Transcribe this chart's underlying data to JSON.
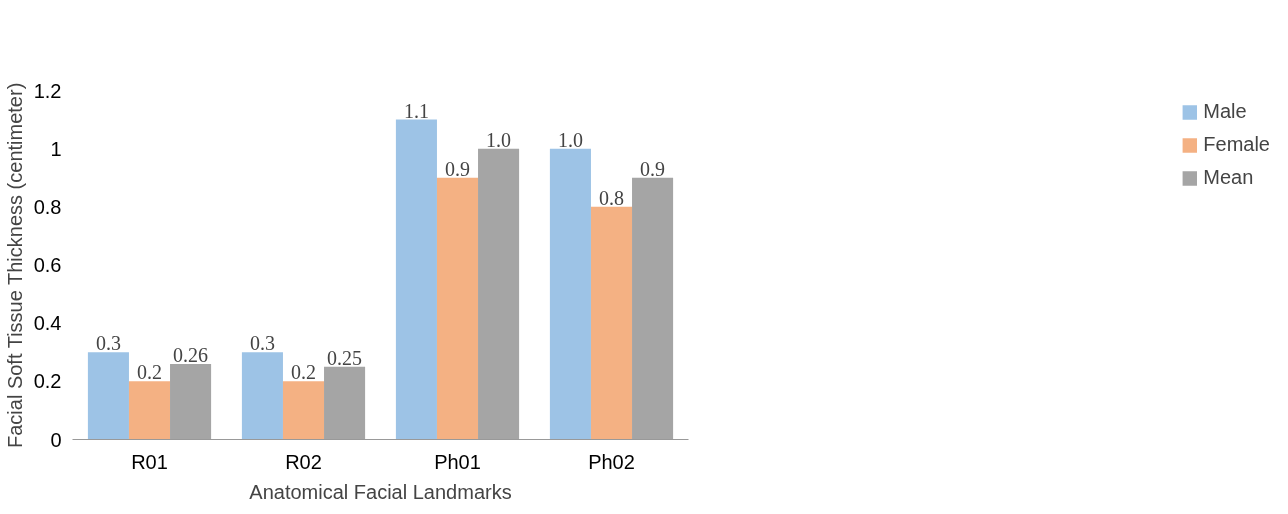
{
  "chart_data": {
    "type": "bar",
    "xlabel": "Anatomical Facial Landmarks",
    "ylabel": "Facial Soft Tissue Thickness (centimeter)",
    "categories": [
      "R01",
      "R02",
      "Ph01",
      "Ph02"
    ],
    "series": [
      {
        "name": "Male",
        "color": "#9dc3e6",
        "values": [
          0.3,
          0.3,
          1.1,
          1.0
        ],
        "value_labels": [
          "0.3",
          "0.3",
          "1.1",
          "1.0"
        ]
      },
      {
        "name": "Female",
        "color": "#f4b183",
        "values": [
          0.2,
          0.2,
          0.9,
          0.8
        ],
        "value_labels": [
          "0.2",
          "0.2",
          "0.9",
          "0.8"
        ]
      },
      {
        "name": "Mean",
        "color": "#a5a5a5",
        "values": [
          0.26,
          0.25,
          1.0,
          0.9
        ],
        "value_labels": [
          "0.26",
          "0.25",
          "1.0",
          "0.9"
        ]
      }
    ],
    "ylim": [
      0,
      1.2
    ],
    "yticks": [
      0,
      0.2,
      0.4,
      0.6,
      0.8,
      1,
      1.2
    ],
    "grid": false,
    "legend": "right"
  }
}
